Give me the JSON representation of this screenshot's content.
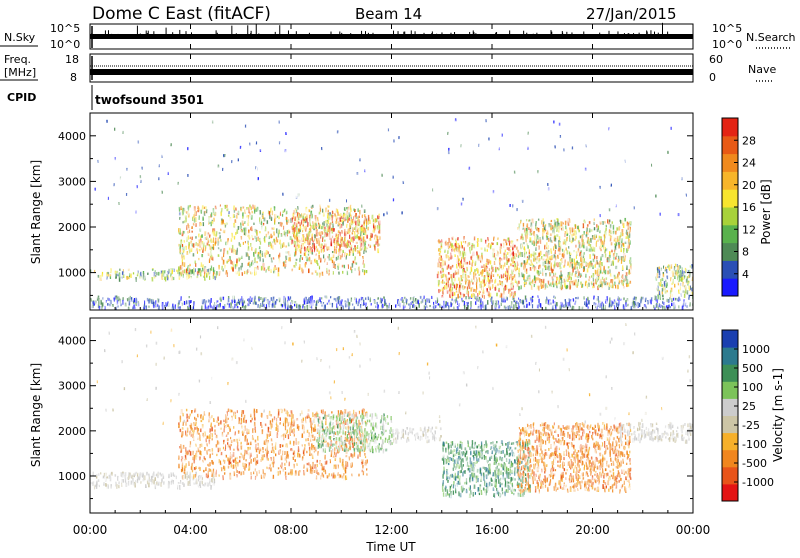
{
  "header": {
    "station": "Dome C East (fitACF)",
    "beam": "Beam 14",
    "date": "27/Jan/2015"
  },
  "noise_panel": {
    "left_label": "N.Sky",
    "right_label": "N.Search",
    "left_ticks": [
      "10^5",
      "10^0"
    ],
    "right_ticks": [
      "10^5",
      "10^0"
    ]
  },
  "freq_panel": {
    "left_label_1": "Freq.",
    "left_label_2": "[MHz]",
    "right_label": "Nave",
    "left_ticks": [
      "18",
      "8"
    ],
    "right_ticks": [
      "60",
      "0"
    ]
  },
  "cpid_panel": {
    "label": "CPID",
    "mode": "twofsound 3501"
  },
  "power_panel": {
    "ylabel": "Slant Range [km]",
    "yticks": [
      "4000",
      "3000",
      "2000",
      "1000"
    ],
    "colorbar_label": "Power [dB]",
    "colorbar_ticks": [
      "28",
      "24",
      "20",
      "16",
      "12",
      "8",
      "4"
    ]
  },
  "velocity_panel": {
    "ylabel": "Slant Range [km]",
    "yticks": [
      "4000",
      "3000",
      "2000",
      "1000"
    ],
    "colorbar_label": "Velocity [m s-1]",
    "colorbar_ticks": [
      "1000",
      "500",
      "100",
      "25",
      "-25",
      "-100",
      "-500",
      "-1000"
    ]
  },
  "xaxis": {
    "label": "Time UT",
    "ticks": [
      "00:00",
      "04:00",
      "08:00",
      "12:00",
      "16:00",
      "20:00",
      "00:00"
    ]
  },
  "colors": {
    "power_scale": [
      "#1a1aff",
      "#2a4fb5",
      "#4e8a55",
      "#59b24d",
      "#a8d23a",
      "#f7e52f",
      "#f7b52a",
      "#f08a1e",
      "#e85a16",
      "#e42414"
    ],
    "velocity_scale": [
      "#e41414",
      "#e8541a",
      "#f0861e",
      "#f6b02a",
      "#ccc5a6",
      "#cccccc",
      "#7cc35a",
      "#3d8f56",
      "#2c7a8e",
      "#1a3fb0"
    ]
  },
  "chart_data": [
    {
      "type": "heatmap",
      "title": "Power",
      "xlabel": "Time UT",
      "ylabel": "Slant Range [km]",
      "xlim": [
        "00:00",
        "24:00"
      ],
      "ylim": [
        180,
        4500
      ],
      "colorbar": {
        "label": "Power [dB]",
        "range": [
          0,
          30
        ],
        "ticks": [
          4,
          8,
          12,
          16,
          20,
          24,
          28
        ]
      },
      "regions": [
        {
          "t_start": 0.0,
          "t_end": 24.0,
          "range_low": 250,
          "range_high": 500,
          "level": "low"
        },
        {
          "t_start": 0.0,
          "t_end": 5.0,
          "range_low": 900,
          "range_high": 1100,
          "level": "medium"
        },
        {
          "t_start": 3.5,
          "t_end": 11.0,
          "range_low": 1000,
          "range_high": 2500,
          "level": "medium-high"
        },
        {
          "t_start": 8.0,
          "t_end": 11.5,
          "range_low": 1500,
          "range_high": 2300,
          "level": "high"
        },
        {
          "t_start": 13.8,
          "t_end": 17.0,
          "range_low": 500,
          "range_high": 1800,
          "level": "high"
        },
        {
          "t_start": 17.0,
          "t_end": 21.5,
          "range_low": 700,
          "range_high": 2200,
          "level": "medium-high"
        },
        {
          "t_start": 22.5,
          "t_end": 24.0,
          "range_low": 500,
          "range_high": 1200,
          "level": "medium"
        }
      ]
    },
    {
      "type": "heatmap",
      "title": "Velocity",
      "xlabel": "Time UT",
      "ylabel": "Slant Range [km]",
      "xlim": [
        "00:00",
        "24:00"
      ],
      "ylim": [
        180,
        4500
      ],
      "colorbar": {
        "label": "Velocity [m s-1]",
        "ticks": [
          1000,
          500,
          100,
          25,
          -25,
          -100,
          -500,
          -1000
        ]
      },
      "regions": [
        {
          "t_start": 0.0,
          "t_end": 5.0,
          "range_low": 800,
          "range_high": 1100,
          "velocity": "ground scatter"
        },
        {
          "t_start": 3.5,
          "t_end": 11.0,
          "range_low": 1000,
          "range_high": 2500,
          "velocity": "-100 to -500"
        },
        {
          "t_start": 9.0,
          "t_end": 12.0,
          "range_low": 1600,
          "range_high": 2400,
          "velocity": "25 to 100"
        },
        {
          "t_start": 12.0,
          "t_end": 14.0,
          "range_low": 1800,
          "range_high": 2100,
          "velocity": "ground scatter"
        },
        {
          "t_start": 14.0,
          "t_end": 17.5,
          "range_low": 600,
          "range_high": 1800,
          "velocity": "100 to 500"
        },
        {
          "t_start": 17.0,
          "t_end": 21.5,
          "range_low": 700,
          "range_high": 2200,
          "velocity": "-100 to -500"
        },
        {
          "t_start": 21.0,
          "t_end": 24.0,
          "range_low": 1800,
          "range_high": 2200,
          "velocity": "ground scatter"
        }
      ]
    }
  ]
}
